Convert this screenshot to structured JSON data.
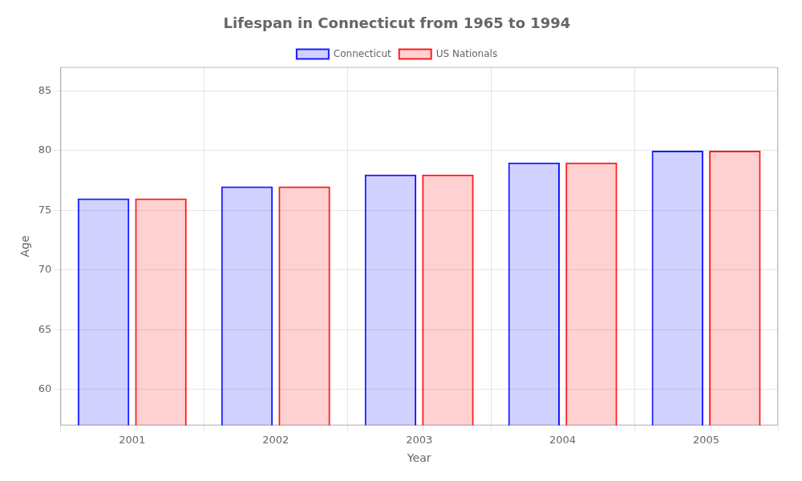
{
  "chart_data": {
    "type": "bar",
    "title": "Lifespan in Connecticut from 1965 to 1994",
    "x_label": "Year",
    "y_label": "Age",
    "categories": [
      "2001",
      "2002",
      "2003",
      "2004",
      "2005"
    ],
    "series": [
      {
        "name": "Connecticut",
        "color": "#1a1aff",
        "values": [
          76,
          77,
          78,
          79,
          80
        ]
      },
      {
        "name": "US Nationals",
        "color": "#ff1a1a",
        "values": [
          76,
          77,
          78,
          79,
          80
        ]
      }
    ],
    "ylim": [
      57,
      87
    ],
    "yticks": [
      60,
      65,
      70,
      75,
      80,
      85
    ],
    "grid": true,
    "legend": "top"
  }
}
